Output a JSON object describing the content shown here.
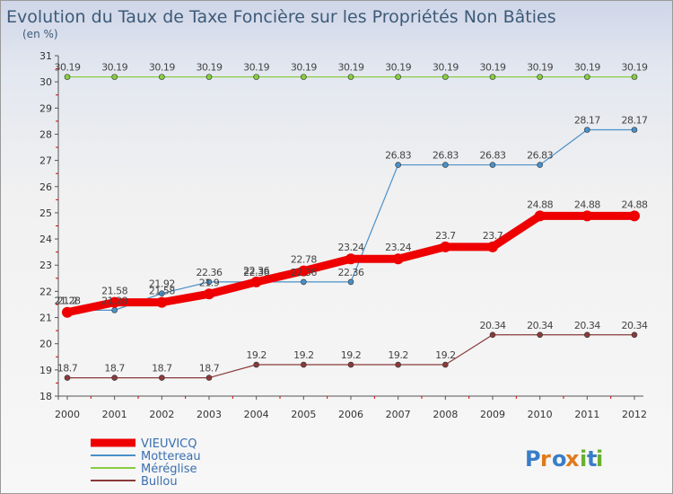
{
  "chart_data": {
    "type": "line",
    "title": "Evolution du Taux de Taxe Foncière sur les Propriétés Non Bâties",
    "ylabel": "(en %)",
    "x": [
      "2000",
      "2001",
      "2002",
      "2003",
      "2004",
      "2005",
      "2006",
      "2007",
      "2008",
      "2009",
      "2010",
      "2011",
      "2012"
    ],
    "ylim": [
      18,
      31
    ],
    "yticks": [
      18,
      19,
      20,
      21,
      22,
      23,
      24,
      25,
      26,
      27,
      28,
      29,
      30,
      31
    ],
    "grid": false,
    "legend_position": "bottom-left",
    "series": [
      {
        "name": "VIEUVICQ",
        "color": "#ee0000",
        "values": [
          21.2,
          21.58,
          21.58,
          21.9,
          22.36,
          22.78,
          23.24,
          23.24,
          23.7,
          23.7,
          24.88,
          24.88,
          24.88
        ],
        "labels": [
          "21.2",
          "21.58",
          "21.58",
          "21.9",
          "22.36",
          "22.78",
          "23.24",
          "23.24",
          "23.7",
          "23.7",
          "24.88",
          "24.88",
          "24.88"
        ]
      },
      {
        "name": "Mottereau",
        "color": "#4a90c8",
        "values": [
          21.28,
          21.28,
          21.92,
          22.36,
          22.36,
          22.36,
          22.36,
          26.83,
          26.83,
          26.83,
          26.83,
          28.17,
          28.17
        ],
        "labels": [
          "21.28",
          "21.28",
          "21.92",
          "22.36",
          "22.36",
          "22.36",
          "22.36",
          "26.83",
          "26.83",
          "26.83",
          "26.83",
          "28.17",
          "28.17"
        ]
      },
      {
        "name": "Méréglise",
        "color": "#88cc44",
        "values": [
          30.19,
          30.19,
          30.19,
          30.19,
          30.19,
          30.19,
          30.19,
          30.19,
          30.19,
          30.19,
          30.19,
          30.19,
          30.19
        ],
        "labels": [
          "30.19",
          "30.19",
          "30.19",
          "30.19",
          "30.19",
          "30.19",
          "30.19",
          "30.19",
          "30.19",
          "30.19",
          "30.19",
          "30.19",
          "30.19"
        ]
      },
      {
        "name": "Bullou",
        "color": "#8a3a3a",
        "values": [
          18.7,
          18.7,
          18.7,
          18.7,
          19.2,
          19.2,
          19.2,
          19.2,
          19.2,
          20.34,
          20.34,
          20.34,
          20.34
        ],
        "labels": [
          "18.7",
          "18.7",
          "18.7",
          "18.7",
          "19.2",
          "19.2",
          "19.2",
          "19.2",
          "19.2",
          "20.34",
          "20.34",
          "20.34",
          "20.34"
        ]
      }
    ]
  },
  "brand": {
    "logo_text": "Proxiti"
  }
}
